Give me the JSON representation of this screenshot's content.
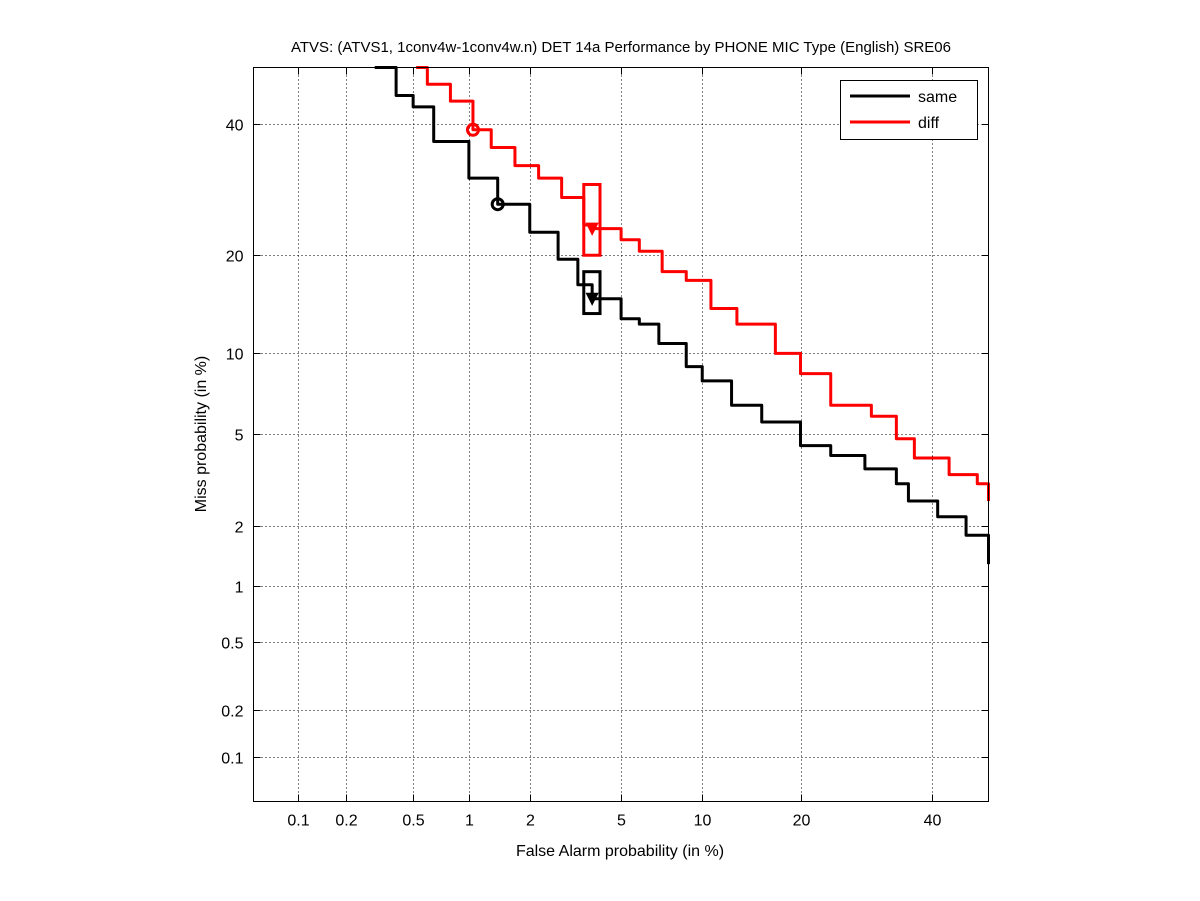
{
  "chart_data": {
    "type": "line",
    "title": "ATVS: (ATVS1, 1conv4w-1conv4w.n) DET 14a Performance by PHONE MIC Type (English) SRE06",
    "xlabel": "False Alarm probability (in %)",
    "ylabel": "Miss probability (in %)",
    "xscale": "normal-deviate",
    "yscale": "normal-deviate",
    "xlim": [
      0.05,
      50
    ],
    "ylim": [
      0.05,
      50
    ],
    "grid": true,
    "legend_position": "top-right",
    "xticks": [
      0.1,
      0.2,
      0.5,
      1,
      2,
      5,
      10,
      20,
      40
    ],
    "xtick_labels": [
      "0.1",
      "0.2",
      "0.5",
      "1",
      "2",
      "5",
      "10",
      "20",
      "40"
    ],
    "yticks": [
      0.1,
      0.2,
      0.5,
      1,
      2,
      5,
      10,
      20,
      40
    ],
    "ytick_labels": [
      "0.1",
      "0.2",
      "0.5",
      "1",
      "2",
      "5",
      "10",
      "20",
      "40"
    ],
    "series": [
      {
        "name": "same",
        "color": "#000000",
        "x": [
          0.3,
          0.4,
          0.5,
          0.65,
          1,
          1.4,
          2,
          2.7,
          3.3,
          3.8,
          5,
          5.9,
          7,
          8.8,
          10,
          12.5,
          15.5,
          20,
          24,
          29,
          34,
          36,
          41,
          46,
          50
        ],
        "y": [
          50,
          45,
          43,
          37,
          31,
          27,
          23,
          19.5,
          16.5,
          15,
          13,
          12.5,
          10.8,
          9,
          8,
          6.5,
          5.6,
          4.5,
          4.1,
          3.6,
          3.1,
          2.6,
          2.2,
          1.8,
          1.3
        ],
        "circle_marker": {
          "x": 1.4,
          "y": 27
        },
        "point_marker": {
          "x": 3.8,
          "y": 15
        },
        "confidence_box": {
          "x": [
            3.5,
            4.1
          ],
          "y": [
            13.5,
            18
          ]
        }
      },
      {
        "name": "diff",
        "color": "#ff0000",
        "x": [
          0.52,
          0.6,
          0.8,
          1.05,
          1.3,
          1.7,
          2.2,
          2.8,
          3.5,
          3.8,
          5,
          5.9,
          7.2,
          8.8,
          10.7,
          13,
          17,
          20,
          24,
          30,
          34,
          37,
          43,
          48,
          50
        ],
        "y": [
          50,
          47,
          44,
          39,
          36,
          33,
          31,
          28,
          24,
          23.5,
          22,
          20.5,
          18,
          17,
          14,
          12.5,
          10,
          8.5,
          6.5,
          5.9,
          4.8,
          4.0,
          3.4,
          3.1,
          2.6
        ],
        "circle_marker": {
          "x": 1.05,
          "y": 39
        },
        "point_marker": {
          "x": 3.8,
          "y": 23.5
        },
        "confidence_box": {
          "x": [
            3.5,
            4.1
          ],
          "y": [
            20,
            30
          ]
        }
      }
    ]
  }
}
